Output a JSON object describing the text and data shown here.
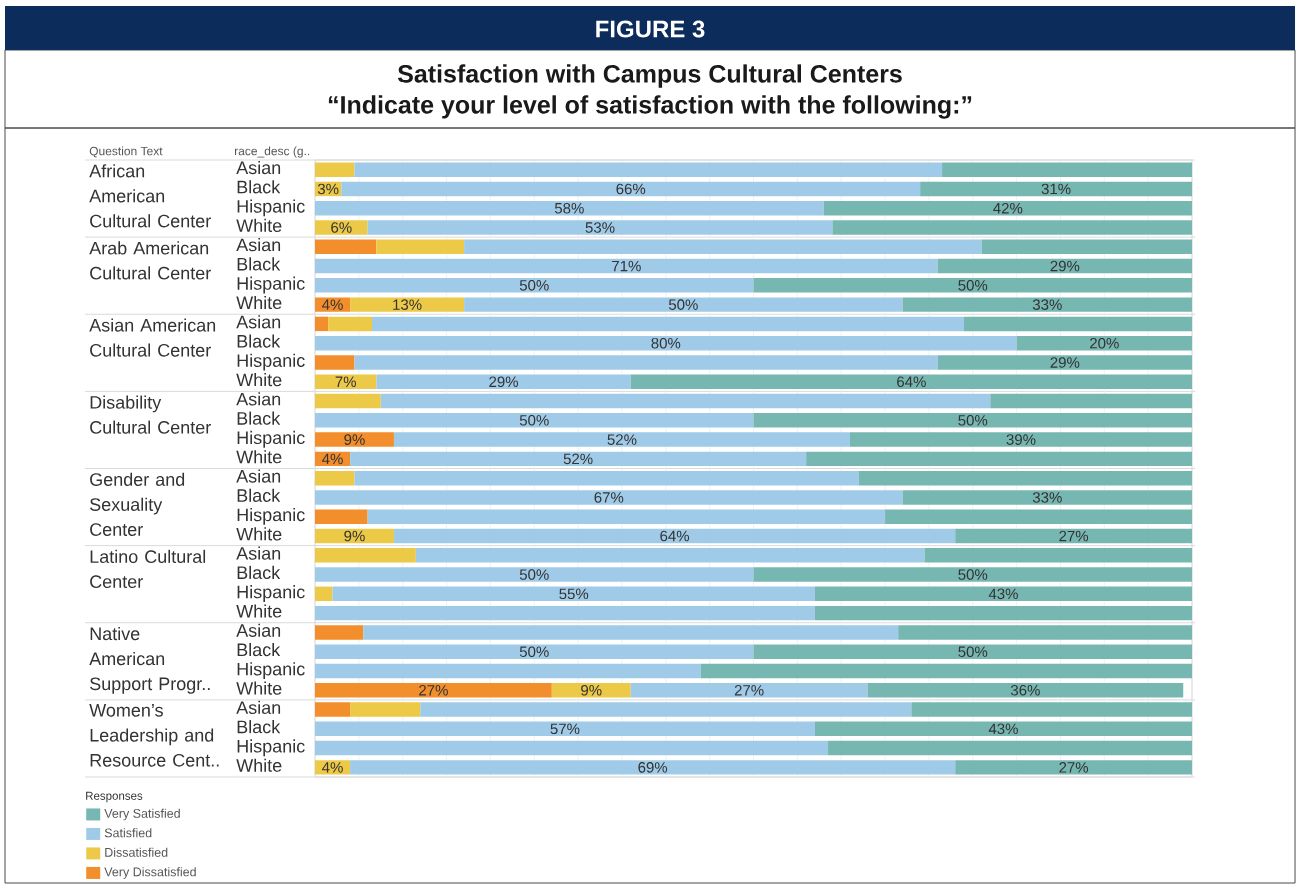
{
  "chart_data": {
    "type": "bar",
    "orientation": "horizontal",
    "stacked": true,
    "title": "Satisfaction with Campus Cultural Centers",
    "subtitle": "“Indicate your level of satisfaction with the following:”",
    "ylabel": "race_desc (g..",
    "legend_title": "Responses",
    "annotations": [
      "FIGURE 3",
      "Question Text",
      "African American Cultural Center",
      "Arab American Cultural Center",
      "Asian American Cultural Center",
      "Disability Cultural Center",
      "Gender and Sexuality Center",
      "Latino Cultural Center",
      "Native American Support Progr..",
      "Women’s Leadership and Resource Cent.."
    ],
    "categories": [
      "Asian",
      "Black",
      "Hispanic",
      "White",
      "Asian",
      "Black",
      "Hispanic",
      "White",
      "Asian",
      "Black",
      "Hispanic",
      "White",
      "Asian",
      "Black",
      "Hispanic",
      "White",
      "Asian",
      "Black",
      "Hispanic",
      "White",
      "Asian",
      "Black",
      "Hispanic",
      "White",
      "Asian",
      "Black",
      "Hispanic",
      "White",
      "Asian",
      "Black",
      "Hispanic",
      "White"
    ],
    "series": [
      {
        "name": "Very Dissatisfied",
        "color": "#f28e2b",
        "values": [
          null,
          null,
          null,
          null,
          7,
          null,
          null,
          4,
          1.5,
          null,
          4.5,
          null,
          null,
          null,
          9,
          4,
          null,
          null,
          6,
          null,
          null,
          null,
          null,
          null,
          5.5,
          null,
          null,
          27,
          4,
          null,
          null,
          null
        ],
        "value_labels": [
          null,
          null,
          null,
          null,
          null,
          null,
          null,
          "4%",
          null,
          null,
          null,
          null,
          null,
          null,
          "9%",
          "4%",
          null,
          null,
          null,
          null,
          null,
          null,
          null,
          null,
          null,
          null,
          null,
          "27%",
          null,
          null,
          null,
          null
        ]
      },
      {
        "name": "Dissatisfied",
        "color": "#edc948",
        "values": [
          4.5,
          3,
          null,
          6,
          10,
          null,
          null,
          13,
          5,
          null,
          null,
          7,
          7.5,
          null,
          null,
          null,
          4.5,
          null,
          null,
          9,
          11.5,
          null,
          2,
          null,
          null,
          null,
          null,
          9,
          8,
          null,
          null,
          4
        ],
        "value_labels": [
          null,
          "3%",
          null,
          "6%",
          null,
          null,
          null,
          "13%",
          null,
          null,
          null,
          "7%",
          null,
          null,
          null,
          null,
          null,
          null,
          null,
          "9%",
          null,
          null,
          null,
          null,
          null,
          null,
          null,
          "9%",
          null,
          null,
          null,
          "4%"
        ]
      },
      {
        "name": "Satisfied",
        "color": "#a0cbe8",
        "values": [
          67,
          66,
          58,
          53,
          59,
          71,
          50,
          50,
          67.5,
          80,
          66.5,
          29,
          69.5,
          50,
          52,
          52,
          57.5,
          67,
          59,
          64,
          58,
          50,
          55,
          57,
          61,
          50,
          44,
          27,
          56,
          57,
          58.5,
          69
        ],
        "value_labels": [
          null,
          "66%",
          "58%",
          "53%",
          null,
          "71%",
          "50%",
          "50%",
          null,
          "80%",
          null,
          "29%",
          null,
          "50%",
          "52%",
          "52%",
          null,
          "67%",
          null,
          "64%",
          null,
          "50%",
          "55%",
          null,
          null,
          "50%",
          null,
          "27%",
          null,
          "57%",
          null,
          "69%"
        ]
      },
      {
        "name": "Very Satisfied",
        "color": "#76b7b2",
        "values": [
          28.5,
          31,
          42,
          41,
          24,
          29,
          50,
          33,
          26,
          20,
          29,
          64,
          23,
          50,
          39,
          44,
          38,
          33,
          35,
          27,
          30.5,
          50,
          43,
          43,
          33.5,
          50,
          56,
          36,
          32,
          43,
          41.5,
          27
        ],
        "value_labels": [
          null,
          "31%",
          "42%",
          null,
          null,
          "29%",
          "50%",
          "33%",
          null,
          "20%",
          "29%",
          "64%",
          null,
          "50%",
          "39%",
          null,
          null,
          "33%",
          null,
          "27%",
          null,
          "50%",
          "43%",
          null,
          null,
          "50%",
          null,
          "36%",
          null,
          "43%",
          null,
          "27%"
        ]
      }
    ],
    "xlim": [
      0,
      100
    ],
    "xticks": [
      {
        "value": 0,
        "label": null
      },
      {
        "value": 5,
        "label": null
      },
      {
        "value": 10,
        "label": null
      },
      {
        "value": 15,
        "label": null
      },
      {
        "value": 20,
        "label": null
      },
      {
        "value": 25,
        "label": null
      },
      {
        "value": 30,
        "label": null
      },
      {
        "value": 35,
        "label": null
      },
      {
        "value": 40,
        "label": null
      },
      {
        "value": 45,
        "label": null
      },
      {
        "value": 50,
        "label": null
      },
      {
        "value": 55,
        "label": null
      },
      {
        "value": 60,
        "label": null
      },
      {
        "value": 65,
        "label": null
      },
      {
        "value": 70,
        "label": null
      },
      {
        "value": 75,
        "label": null
      },
      {
        "value": 80,
        "label": null
      },
      {
        "value": 85,
        "label": null
      },
      {
        "value": 90,
        "label": null
      },
      {
        "value": 95,
        "label": null
      },
      {
        "value": 100,
        "label": null
      }
    ],
    "grid": "x",
    "legend": "bottom left",
    "tick_labels": "y"
  }
}
